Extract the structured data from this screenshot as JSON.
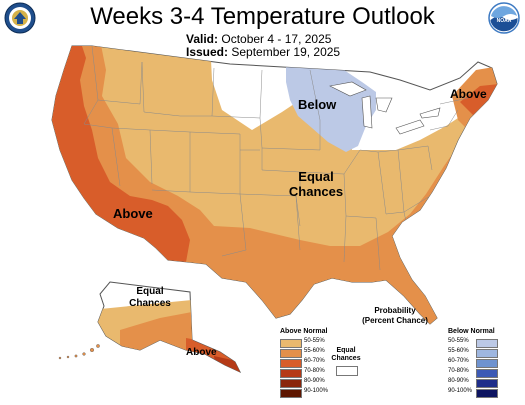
{
  "header": {
    "title": "Weeks 3-4 Temperature Outlook",
    "valid_label": "Valid:",
    "valid_value": "October 4 - 17, 2025",
    "issued_label": "Issued:",
    "issued_value": "September 19, 2025"
  },
  "logos": {
    "left": "department-of-commerce-seal",
    "right": "noaa-logo",
    "right_text": "NOAA"
  },
  "map": {
    "labels": {
      "below_midwest": "Below",
      "above_northeast": "Above",
      "above_southwest": "Above",
      "equal_center_line1": "Equal",
      "equal_center_line2": "Chances",
      "equal_alaska_line1": "Equal",
      "equal_alaska_line2": "Chances",
      "above_alaska": "Above"
    },
    "colors": {
      "above_50_55": "#e9b96e",
      "above_55_60": "#e4904a",
      "above_60_70": "#d85d2a",
      "above_70_80": "#b53a17",
      "above_80_90": "#8a260c",
      "above_90_100": "#5e1600",
      "below_50_55": "#bcc9e6",
      "below_55_60": "#9fb7e0",
      "below_60_70": "#6f93d0",
      "below_70_80": "#3d5ab5",
      "below_80_90": "#1f2e8a",
      "below_90_100": "#0d1460",
      "equal_chances": "#ffffff"
    }
  },
  "legend": {
    "title_line1": "Probability",
    "title_line2": "(Percent Chance)",
    "above_header": "Above Normal",
    "below_header": "Below Normal",
    "equal_line1": "Equal",
    "equal_line2": "Chances",
    "above_rows": [
      {
        "label": "50-55%",
        "color": "#e9b96e"
      },
      {
        "label": "55-60%",
        "color": "#e4904a"
      },
      {
        "label": "60-70%",
        "color": "#d85d2a"
      },
      {
        "label": "70-80%",
        "color": "#b53a17"
      },
      {
        "label": "80-90%",
        "color": "#8a260c"
      },
      {
        "label": "90-100%",
        "color": "#5e1600"
      }
    ],
    "below_rows": [
      {
        "label": "50-55%",
        "color": "#bcc9e6"
      },
      {
        "label": "55-60%",
        "color": "#9fb7e0"
      },
      {
        "label": "60-70%",
        "color": "#6f93d0"
      },
      {
        "label": "70-80%",
        "color": "#3d5ab5"
      },
      {
        "label": "80-90%",
        "color": "#1f2e8a"
      },
      {
        "label": "90-100%",
        "color": "#0d1460"
      }
    ]
  }
}
